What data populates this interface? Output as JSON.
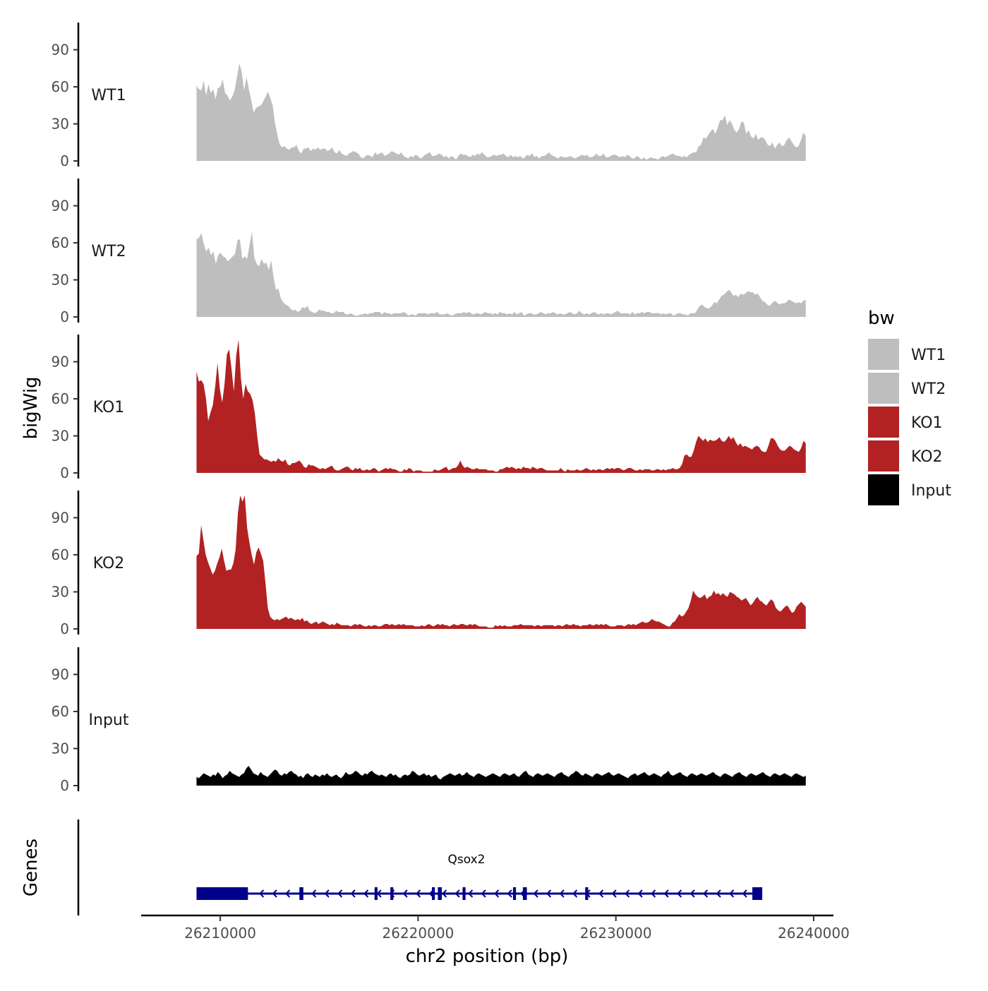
{
  "chart_data": {
    "type": "area",
    "ylabel": "bigWig",
    "xlabel": "chr2 position (bp)",
    "xlim": [
      26206000,
      26241000
    ],
    "ylim": [
      0,
      112
    ],
    "y_ticks": [
      0,
      30,
      60,
      90
    ],
    "x_ticks": [
      26210000,
      26220000,
      26230000,
      26240000
    ],
    "x_tick_labels": [
      "26210000",
      "26220000",
      "26230000",
      "26240000"
    ],
    "legend": {
      "title": "bw",
      "position": "right",
      "entries": [
        {
          "label": "WT1",
          "color": "#bebebe"
        },
        {
          "label": "WT2",
          "color": "#bebebe"
        },
        {
          "label": "KO1",
          "color": "#b22222"
        },
        {
          "label": "KO2",
          "color": "#b22222"
        },
        {
          "label": "Input",
          "color": "#000000"
        }
      ]
    },
    "x_start": 26208800,
    "x_end": 26239600,
    "series": [
      {
        "name": "WT1",
        "color": "#bebebe",
        "values": [
          61,
          58,
          57,
          65,
          53,
          62,
          55,
          58,
          50,
          59,
          60,
          66,
          55,
          53,
          49,
          52,
          57,
          68,
          79,
          72,
          57,
          68,
          58,
          49,
          39,
          43,
          44,
          45,
          48,
          52,
          56,
          51,
          45,
          30,
          21,
          13,
          11,
          12,
          10,
          9,
          11,
          11,
          13,
          8,
          6,
          10,
          10,
          11,
          8,
          10,
          9,
          11,
          9,
          10,
          10,
          8,
          9,
          11,
          7,
          6,
          9,
          6,
          5,
          4,
          6,
          7,
          8,
          7,
          6,
          3,
          2,
          4,
          5,
          4,
          3,
          7,
          5,
          6,
          7,
          4,
          5,
          6,
          8,
          7,
          6,
          5,
          7,
          4,
          3,
          2,
          4,
          3,
          5,
          4,
          2,
          3,
          5,
          6,
          7,
          4,
          4,
          5,
          6,
          5,
          3,
          4,
          2,
          4,
          3,
          1,
          4,
          6,
          5,
          5,
          4,
          3,
          5,
          4,
          6,
          5,
          7,
          5,
          3,
          3,
          4,
          5,
          4,
          5,
          5,
          6,
          4,
          3,
          5,
          3,
          4,
          3,
          4,
          2,
          3,
          5,
          4,
          6,
          3,
          4,
          2,
          4,
          4,
          5,
          7,
          5,
          4,
          3,
          2,
          4,
          3,
          3,
          3,
          4,
          3,
          2,
          3,
          4,
          5,
          4,
          5,
          3,
          3,
          4,
          6,
          4,
          4,
          6,
          3,
          3,
          4,
          5,
          5,
          4,
          3,
          4,
          3,
          5,
          4,
          2,
          2,
          4,
          3,
          1,
          3,
          1,
          2,
          3,
          2,
          2,
          1,
          3,
          4,
          3,
          4,
          5,
          6,
          5,
          4,
          4,
          3,
          4,
          3,
          5,
          6,
          7,
          7,
          12,
          13,
          19,
          18,
          21,
          24,
          26,
          22,
          27,
          33,
          33,
          37,
          29,
          33,
          30,
          25,
          23,
          26,
          32,
          31,
          22,
          25,
          20,
          18,
          22,
          17,
          19,
          19,
          17,
          13,
          12,
          15,
          10,
          13,
          15,
          12,
          13,
          17,
          19,
          16,
          13,
          11,
          12,
          17,
          23,
          20
        ]
      },
      {
        "name": "WT2",
        "color": "#bebebe",
        "values": [
          63,
          64,
          68,
          59,
          53,
          56,
          50,
          53,
          43,
          50,
          52,
          49,
          48,
          45,
          47,
          49,
          51,
          62,
          63,
          47,
          49,
          47,
          58,
          69,
          48,
          43,
          41,
          47,
          43,
          44,
          38,
          46,
          32,
          22,
          23,
          15,
          12,
          10,
          9,
          7,
          5,
          6,
          4,
          5,
          8,
          7,
          9,
          5,
          4,
          3,
          4,
          6,
          5,
          5,
          4,
          4,
          3,
          3,
          5,
          4,
          4,
          4,
          2,
          2,
          3,
          2,
          1,
          1,
          2,
          2,
          3,
          2,
          3,
          3,
          4,
          4,
          4,
          2,
          4,
          3,
          3,
          2,
          3,
          3,
          3,
          3,
          4,
          3,
          1,
          2,
          2,
          1,
          3,
          3,
          3,
          3,
          2,
          3,
          3,
          3,
          4,
          2,
          2,
          2,
          3,
          2,
          1,
          2,
          3,
          3,
          3,
          4,
          3,
          4,
          3,
          2,
          3,
          3,
          2,
          3,
          4,
          3,
          3,
          2,
          3,
          2,
          4,
          3,
          3,
          2,
          3,
          2,
          4,
          2,
          3,
          4,
          1,
          2,
          3,
          3,
          2,
          2,
          3,
          4,
          3,
          2,
          3,
          3,
          4,
          3,
          2,
          3,
          2,
          2,
          3,
          4,
          3,
          2,
          3,
          5,
          3,
          2,
          3,
          2,
          3,
          4,
          3,
          2,
          3,
          2,
          3,
          3,
          2,
          3,
          4,
          5,
          3,
          3,
          3,
          3,
          2,
          4,
          2,
          3,
          3,
          4,
          3,
          4,
          4,
          3,
          3,
          3,
          3,
          2,
          3,
          2,
          3,
          3,
          1,
          2,
          3,
          3,
          2,
          2,
          1,
          3,
          3,
          3,
          6,
          9,
          10,
          8,
          7,
          7,
          9,
          12,
          11,
          14,
          17,
          18,
          20,
          22,
          20,
          17,
          18,
          16,
          19,
          18,
          19,
          21,
          20,
          20,
          18,
          19,
          16,
          13,
          12,
          10,
          9,
          11,
          13,
          12,
          10,
          11,
          11,
          12,
          14,
          13,
          12,
          11,
          12,
          11,
          13,
          14
        ]
      },
      {
        "name": "KO1",
        "color": "#b22222",
        "values": [
          82,
          74,
          75,
          72,
          61,
          42,
          49,
          55,
          70,
          89,
          68,
          57,
          72,
          96,
          100,
          84,
          66,
          95,
          108,
          77,
          60,
          72,
          66,
          64,
          59,
          48,
          30,
          15,
          13,
          11,
          11,
          10,
          9,
          10,
          9,
          12,
          10,
          9,
          11,
          7,
          6,
          8,
          8,
          9,
          10,
          8,
          5,
          4,
          7,
          6,
          6,
          5,
          4,
          3,
          4,
          3,
          4,
          5,
          6,
          3,
          2,
          2,
          3,
          4,
          5,
          5,
          3,
          2,
          4,
          3,
          4,
          2,
          2,
          3,
          2,
          3,
          4,
          3,
          1,
          2,
          3,
          4,
          3,
          4,
          3,
          3,
          2,
          1,
          1,
          3,
          2,
          4,
          3,
          1,
          2,
          2,
          2,
          1,
          1,
          1,
          1,
          1,
          3,
          2,
          2,
          3,
          4,
          5,
          2,
          3,
          4,
          4,
          6,
          10,
          6,
          4,
          5,
          4,
          3,
          3,
          4,
          3,
          3,
          3,
          3,
          2,
          2,
          2,
          1,
          1,
          3,
          3,
          4,
          5,
          4,
          5,
          4,
          3,
          4,
          3,
          5,
          4,
          4,
          3,
          5,
          4,
          3,
          4,
          4,
          3,
          2,
          2,
          2,
          2,
          2,
          2,
          4,
          2,
          1,
          3,
          2,
          2,
          2,
          3,
          2,
          2,
          3,
          4,
          3,
          2,
          3,
          2,
          3,
          3,
          2,
          3,
          4,
          3,
          4,
          3,
          4,
          4,
          3,
          2,
          3,
          4,
          4,
          3,
          2,
          2,
          3,
          2,
          3,
          3,
          3,
          2,
          2,
          3,
          3,
          2,
          3,
          2,
          3,
          3,
          4,
          3,
          3,
          4,
          7,
          14,
          15,
          13,
          13,
          18,
          25,
          30,
          28,
          26,
          28,
          25,
          27,
          26,
          26,
          27,
          29,
          26,
          25,
          27,
          30,
          27,
          29,
          25,
          22,
          24,
          21,
          22,
          21,
          20,
          19,
          21,
          22,
          21,
          18,
          17,
          17,
          22,
          28,
          28,
          26,
          22,
          19,
          18,
          18,
          20,
          22,
          21,
          19,
          18,
          17,
          20,
          26,
          24
        ]
      },
      {
        "name": "KO2",
        "color": "#b22222",
        "values": [
          59,
          61,
          84,
          72,
          60,
          54,
          49,
          44,
          47,
          53,
          58,
          65,
          55,
          47,
          48,
          48,
          53,
          64,
          94,
          108,
          103,
          108,
          82,
          70,
          60,
          52,
          62,
          66,
          61,
          55,
          37,
          17,
          10,
          8,
          7,
          8,
          7,
          8,
          9,
          10,
          8,
          9,
          8,
          7,
          8,
          7,
          9,
          6,
          7,
          5,
          4,
          5,
          6,
          4,
          5,
          6,
          5,
          4,
          3,
          4,
          3,
          5,
          4,
          3,
          3,
          3,
          3,
          2,
          3,
          4,
          3,
          4,
          3,
          2,
          2,
          3,
          2,
          3,
          3,
          2,
          2,
          3,
          4,
          4,
          3,
          4,
          3,
          3,
          4,
          3,
          4,
          3,
          3,
          3,
          3,
          2,
          2,
          2,
          3,
          2,
          3,
          4,
          3,
          2,
          3,
          4,
          3,
          4,
          3,
          3,
          2,
          3,
          4,
          3,
          3,
          4,
          4,
          3,
          3,
          4,
          3,
          4,
          3,
          2,
          2,
          2,
          2,
          1,
          1,
          1,
          3,
          2,
          3,
          2,
          3,
          2,
          2,
          2,
          3,
          3,
          3,
          4,
          3,
          3,
          3,
          3,
          3,
          2,
          3,
          3,
          2,
          3,
          3,
          3,
          3,
          3,
          2,
          3,
          3,
          2,
          3,
          4,
          3,
          3,
          4,
          3,
          3,
          2,
          3,
          3,
          3,
          4,
          3,
          3,
          4,
          3,
          4,
          3,
          4,
          3,
          2,
          2,
          2,
          3,
          3,
          3,
          2,
          3,
          4,
          3,
          4,
          3,
          4,
          5,
          6,
          5,
          5,
          6,
          8,
          7,
          6,
          6,
          5,
          4,
          3,
          2,
          2,
          5,
          6,
          9,
          12,
          10,
          11,
          14,
          17,
          23,
          31,
          28,
          26,
          25,
          26,
          28,
          24,
          26,
          27,
          31,
          28,
          29,
          27,
          29,
          27,
          26,
          30,
          29,
          28,
          26,
          25,
          23,
          24,
          25,
          22,
          19,
          21,
          24,
          26,
          23,
          22,
          20,
          19,
          22,
          24,
          22,
          17,
          15,
          14,
          16,
          18,
          19,
          16,
          13,
          14,
          18,
          20,
          22,
          20,
          18
        ]
      },
      {
        "name": "Input",
        "color": "#000000",
        "values": [
          7,
          6,
          8,
          10,
          9,
          8,
          7,
          9,
          8,
          11,
          9,
          6,
          8,
          9,
          12,
          10,
          9,
          8,
          7,
          9,
          10,
          14,
          16,
          13,
          10,
          9,
          8,
          11,
          9,
          8,
          7,
          9,
          11,
          13,
          12,
          9,
          8,
          10,
          9,
          11,
          12,
          10,
          9,
          7,
          8,
          6,
          9,
          10,
          8,
          7,
          9,
          8,
          7,
          9,
          8,
          10,
          8,
          7,
          8,
          9,
          7,
          6,
          8,
          11,
          9,
          9,
          10,
          12,
          11,
          9,
          8,
          10,
          9,
          11,
          12,
          10,
          9,
          8,
          9,
          8,
          7,
          9,
          10,
          8,
          9,
          7,
          6,
          8,
          9,
          8,
          9,
          12,
          11,
          9,
          8,
          9,
          10,
          8,
          9,
          7,
          8,
          9,
          6,
          5,
          7,
          8,
          9,
          10,
          9,
          8,
          9,
          10,
          8,
          9,
          11,
          9,
          8,
          7,
          9,
          10,
          9,
          8,
          7,
          8,
          9,
          10,
          9,
          8,
          7,
          9,
          10,
          9,
          8,
          9,
          10,
          8,
          7,
          9,
          11,
          12,
          9,
          8,
          7,
          9,
          10,
          9,
          8,
          9,
          10,
          9,
          8,
          7,
          9,
          10,
          11,
          9,
          8,
          7,
          9,
          10,
          12,
          11,
          9,
          8,
          10,
          9,
          8,
          7,
          9,
          10,
          9,
          8,
          9,
          10,
          11,
          9,
          8,
          9,
          10,
          9,
          8,
          7,
          6,
          8,
          9,
          10,
          8,
          9,
          10,
          11,
          9,
          8,
          9,
          10,
          9,
          8,
          7,
          9,
          10,
          12,
          9,
          8,
          9,
          10,
          11,
          9,
          8,
          7,
          9,
          10,
          9,
          8,
          9,
          10,
          9,
          8,
          9,
          10,
          11,
          9,
          8,
          7,
          9,
          10,
          9,
          8,
          7,
          9,
          10,
          11,
          9,
          8,
          7,
          9,
          10,
          9,
          8,
          9,
          10,
          11,
          9,
          8,
          7,
          9,
          10,
          9,
          8,
          9,
          10,
          9,
          8,
          7,
          9,
          10,
          9,
          8,
          7,
          8
        ]
      }
    ],
    "genes_track": {
      "label": "Genes",
      "gene_name": "Qsox2",
      "strand": "-",
      "color": "#00008b",
      "start": 26208800,
      "end": 26237400,
      "exons": [
        [
          26208800,
          26211400
        ],
        [
          26214000,
          26214200
        ],
        [
          26217800,
          26217950
        ],
        [
          26218600,
          26218750
        ],
        [
          26220700,
          26220850
        ],
        [
          26221000,
          26221200
        ],
        [
          26222250,
          26222400
        ],
        [
          26224800,
          26224950
        ],
        [
          26225300,
          26225500
        ],
        [
          26228450,
          26228600
        ],
        [
          26236900,
          26237400
        ]
      ]
    }
  }
}
